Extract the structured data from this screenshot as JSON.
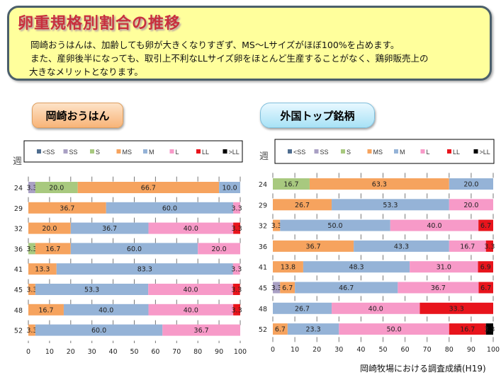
{
  "header": {
    "title": "卵重規格別割合の推移",
    "line1": "岡崎おうはんは、加齢しても卵が大きくなりすぎず、MS〜Lサイズがほぼ100%を占めます。",
    "line2": "また、産卵後半になっても、取引上不利なLLサイズ卵をほとんど生産することがなく、鶏卵販売上の",
    "line3": "大きなメリットとなります。"
  },
  "source": "岡崎牧場における調査成績(H19)",
  "chart_data": [
    {
      "type": "bar",
      "stacked": true,
      "orientation": "horizontal",
      "title": "岡崎おうはん",
      "ylabel": "週",
      "xlim": [
        0,
        100
      ],
      "xticks": [
        "0",
        "10",
        "20",
        "30",
        "40",
        "50",
        "60",
        "70",
        "80",
        "90",
        "100"
      ],
      "categories": [
        "24",
        "29",
        "32",
        "36",
        "41",
        "45",
        "48",
        "52"
      ],
      "legend_position": "top",
      "series": [
        {
          "name": "<SS",
          "color": "#4f6d8f",
          "values": [
            0,
            0,
            0,
            0,
            0,
            0,
            0,
            0
          ]
        },
        {
          "name": "SS",
          "color": "#a9a0c4",
          "values": [
            3.3,
            0,
            0,
            0,
            0,
            0,
            0,
            0
          ]
        },
        {
          "name": "S",
          "color": "#a8c97f",
          "values": [
            20.0,
            0,
            0,
            3.3,
            0,
            0,
            0,
            0
          ]
        },
        {
          "name": "MS",
          "color": "#f6a35e",
          "values": [
            66.7,
            36.7,
            20.0,
            16.7,
            13.3,
            3.3,
            16.7,
            3.3
          ]
        },
        {
          "name": "M",
          "color": "#95b3d7",
          "values": [
            10.0,
            60.0,
            36.7,
            60.0,
            83.3,
            53.3,
            40.0,
            60.0
          ]
        },
        {
          "name": "L",
          "color": "#f79ac8",
          "values": [
            0,
            3.3,
            40.0,
            20.0,
            3.3,
            40.0,
            40.0,
            36.7
          ]
        },
        {
          "name": "LL",
          "color": "#e8141c",
          "values": [
            0,
            0,
            3.3,
            0,
            0,
            3.3,
            3.3,
            0
          ]
        },
        {
          "name": ">LL",
          "color": "#000000",
          "values": [
            0,
            0,
            0,
            0,
            0,
            0,
            0,
            0
          ]
        }
      ]
    },
    {
      "type": "bar",
      "stacked": true,
      "orientation": "horizontal",
      "title": "外国トップ銘柄",
      "ylabel": "週",
      "xlim": [
        0,
        100
      ],
      "xticks": [
        "0",
        "10",
        "20",
        "30",
        "40",
        "50",
        "60",
        "70",
        "80",
        "90",
        "100"
      ],
      "categories": [
        "24",
        "29",
        "32",
        "36",
        "41",
        "45",
        "48",
        "52"
      ],
      "legend_position": "top",
      "series": [
        {
          "name": "<SS",
          "color": "#4f6d8f",
          "values": [
            0,
            0,
            0,
            0,
            0,
            0,
            0,
            0
          ]
        },
        {
          "name": "SS",
          "color": "#a9a0c4",
          "values": [
            0,
            0,
            0,
            0,
            0,
            3.3,
            0,
            0
          ]
        },
        {
          "name": "S",
          "color": "#a8c97f",
          "values": [
            16.7,
            0,
            0,
            0,
            0,
            0,
            0,
            0
          ]
        },
        {
          "name": "MS",
          "color": "#f6a35e",
          "values": [
            63.3,
            26.7,
            3.3,
            36.7,
            13.8,
            6.7,
            0,
            6.7
          ]
        },
        {
          "name": "M",
          "color": "#95b3d7",
          "values": [
            20.0,
            53.3,
            50.0,
            43.3,
            48.3,
            46.7,
            26.7,
            23.3
          ]
        },
        {
          "name": "L",
          "color": "#f79ac8",
          "values": [
            0,
            20.0,
            40.0,
            16.7,
            31.0,
            36.7,
            40.0,
            50.0
          ]
        },
        {
          "name": "LL",
          "color": "#e8141c",
          "values": [
            0,
            0,
            6.7,
            3.3,
            6.9,
            6.7,
            33.3,
            16.7
          ]
        },
        {
          "name": ">LL",
          "color": "#000000",
          "values": [
            0,
            0,
            0,
            0,
            0,
            0,
            0,
            3.3
          ]
        }
      ]
    }
  ]
}
